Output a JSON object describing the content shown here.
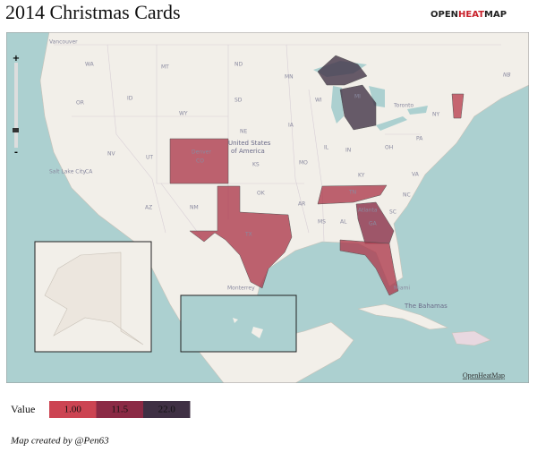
{
  "header": {
    "title": "2014 Christmas Cards",
    "logo": {
      "open": "OPEN",
      "heat": "HEAT",
      "map": "MAP"
    }
  },
  "map": {
    "zoom": {
      "plus": "+",
      "minus": "-"
    },
    "attribution": "OpenHeatMap",
    "regions": [
      {
        "code": "MI",
        "value": 22.0
      },
      {
        "code": "GA",
        "value": 12.0
      },
      {
        "code": "TN",
        "value": 6.0
      },
      {
        "code": "FL",
        "value": 6.0
      },
      {
        "code": "TX",
        "value": 6.0
      },
      {
        "code": "CO",
        "value": 6.0
      },
      {
        "code": "VT",
        "value": 4.0
      }
    ],
    "labels": [
      "Vancouver",
      "WA",
      "MT",
      "ND",
      "MN",
      "OR",
      "ID",
      "WY",
      "SD",
      "NE",
      "United States",
      "of America",
      "Denver",
      "CO",
      "NV",
      "UT",
      "KS",
      "CA",
      "AZ",
      "NM",
      "OK",
      "TX",
      "AR",
      "MS",
      "AL",
      "GA",
      "TN",
      "KY",
      "SC",
      "NC",
      "VA",
      "IL",
      "IN",
      "MO",
      "IA",
      "WI",
      "MI",
      "OH",
      "PA",
      "NY",
      "Toronto",
      "NB",
      "Monterrey",
      "The Bahamas",
      "Salt Lake City",
      "Atlanta",
      "Miami"
    ]
  },
  "legend": {
    "title": "Value",
    "items": [
      {
        "value": 1.0,
        "label": "1.00",
        "color": "#cc4452"
      },
      {
        "value": 11.5,
        "label": "11.5",
        "color": "#8b2a45"
      },
      {
        "value": 22.0,
        "label": "22.0",
        "color": "#3f3044"
      }
    ]
  },
  "footer": {
    "credit": "Map created by @Pen63"
  }
}
